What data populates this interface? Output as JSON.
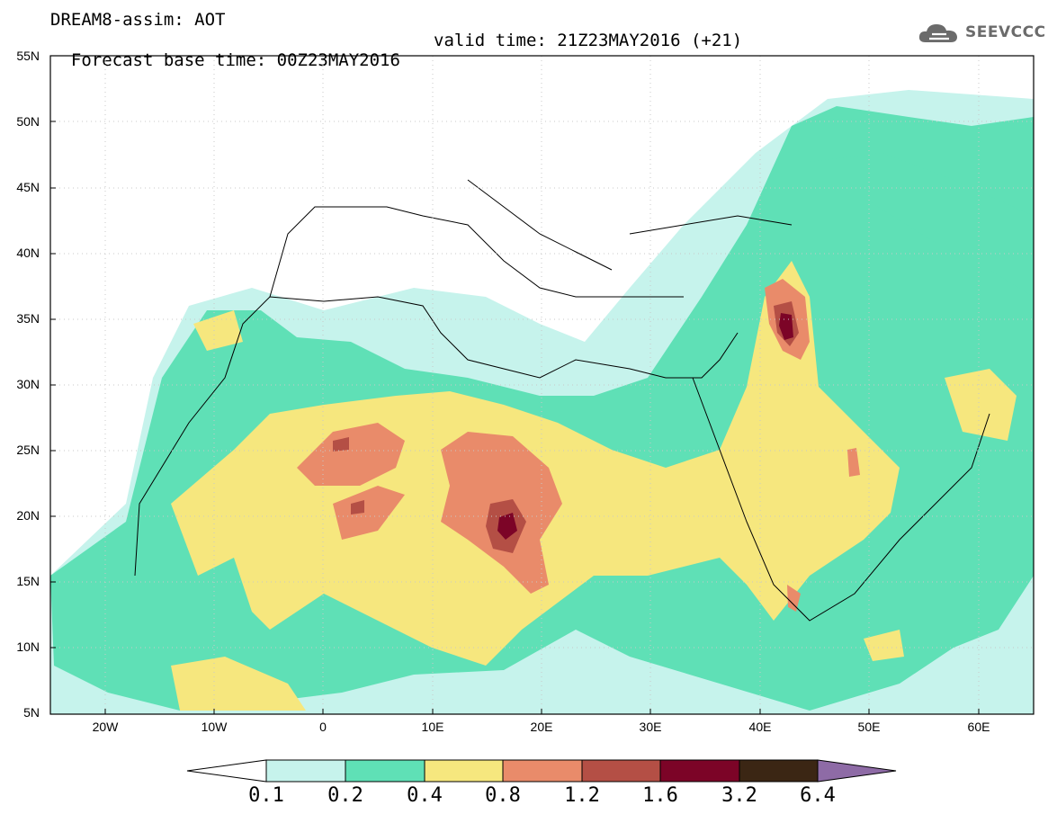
{
  "header": {
    "title_line1": "DREAM8-assim: AOT",
    "base_time": "Forecast base time: 00Z23MAY2016",
    "valid_time": "valid time: 21Z23MAY2016 (+21)"
  },
  "logo": {
    "text": "SEEVCCC",
    "icon": "cloud-icon"
  },
  "map": {
    "lat_labels": [
      "55N",
      "50N",
      "45N",
      "40N",
      "35N",
      "30N",
      "25N",
      "20N",
      "15N",
      "10N",
      "5N"
    ],
    "lon_labels": [
      "20W",
      "10W",
      "0",
      "10E",
      "20E",
      "30E",
      "40E",
      "50E",
      "60E"
    ],
    "lat_range": [
      5,
      55
    ],
    "lon_range": [
      -25,
      65
    ]
  },
  "colorbar": {
    "labels": [
      "0.1",
      "0.2",
      "0.4",
      "0.8",
      "1.2",
      "1.6",
      "3.2",
      "6.4"
    ],
    "colors": [
      "#c6f3ec",
      "#5fe0b6",
      "#f6e77e",
      "#e98b6a",
      "#b44f45",
      "#7c0427",
      "#3b2614",
      "#8e6ba6"
    ]
  }
}
